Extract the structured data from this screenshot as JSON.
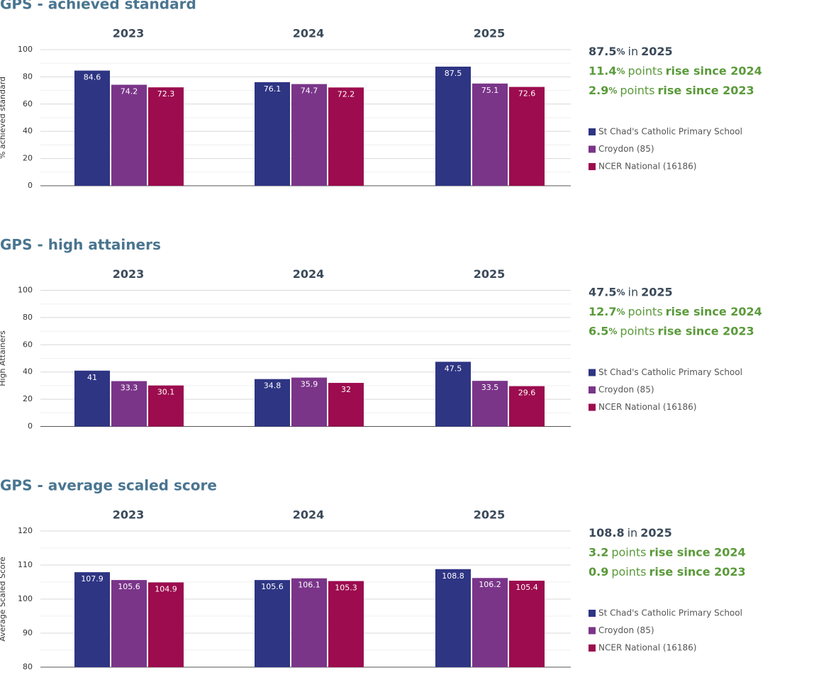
{
  "chart_data": [
    {
      "type": "bar",
      "title": "GPS - achieved standard",
      "y_label": "% achieved standard",
      "categories": [
        "2023",
        "2024",
        "2025"
      ],
      "series": [
        {
          "name": "St Chad's Catholic Primary School",
          "color": "#2e3583",
          "values": [
            84.6,
            76.1,
            87.5
          ]
        },
        {
          "name": "Croydon (85)",
          "color": "#7a3589",
          "values": [
            74.2,
            74.7,
            75.1
          ]
        },
        {
          "name": "NCER National (16186)",
          "color": "#9c0c4e",
          "values": [
            72.3,
            72.2,
            72.6
          ]
        }
      ],
      "ylim": [
        0,
        100
      ],
      "yticks": [
        0,
        20,
        40,
        60,
        80,
        100
      ],
      "minor_yticks": [
        10,
        30,
        50,
        70,
        90
      ],
      "grid": true,
      "summary": [
        {
          "figure": "87.5",
          "unit": "%",
          "words": "in",
          "emphasis": "2025"
        },
        {
          "figure": "11.4",
          "unit": "%",
          "words": "points",
          "emphasis": "rise since 2024"
        },
        {
          "figure": "2.9",
          "unit": "%",
          "words": "points",
          "emphasis": "rise since 2023"
        }
      ]
    },
    {
      "type": "bar",
      "title": "GPS - high attainers",
      "y_label": "High Attainers",
      "categories": [
        "2023",
        "2024",
        "2025"
      ],
      "series": [
        {
          "name": "St Chad's Catholic Primary School",
          "color": "#2e3583",
          "values": [
            41,
            34.8,
            47.5
          ]
        },
        {
          "name": "Croydon (85)",
          "color": "#7a3589",
          "values": [
            33.3,
            35.9,
            33.5
          ]
        },
        {
          "name": "NCER National (16186)",
          "color": "#9c0c4e",
          "values": [
            30.1,
            32,
            29.6
          ]
        }
      ],
      "ylim": [
        0,
        100
      ],
      "yticks": [
        0,
        20,
        40,
        60,
        80,
        100
      ],
      "minor_yticks": [
        10,
        30,
        50,
        70,
        90
      ],
      "grid": true,
      "summary": [
        {
          "figure": "47.5",
          "unit": "%",
          "words": "in",
          "emphasis": "2025"
        },
        {
          "figure": "12.7",
          "unit": "%",
          "words": "points",
          "emphasis": "rise since 2024"
        },
        {
          "figure": "6.5",
          "unit": "%",
          "words": "points",
          "emphasis": "rise since 2023"
        }
      ]
    },
    {
      "type": "bar",
      "title": "GPS - average scaled score",
      "y_label": "Average Scaled Score",
      "categories": [
        "2023",
        "2024",
        "2025"
      ],
      "series": [
        {
          "name": "St Chad's Catholic Primary School",
          "color": "#2e3583",
          "values": [
            107.9,
            105.6,
            108.8
          ]
        },
        {
          "name": "Croydon (85)",
          "color": "#7a3589",
          "values": [
            105.6,
            106.1,
            106.2
          ]
        },
        {
          "name": "NCER National (16186)",
          "color": "#9c0c4e",
          "values": [
            104.9,
            105.3,
            105.4
          ]
        }
      ],
      "ylim": [
        80,
        120
      ],
      "yticks": [
        80,
        90,
        100,
        110,
        120
      ],
      "minor_yticks": [
        85,
        95,
        105,
        115
      ],
      "grid": true,
      "summary": [
        {
          "figure": "108.8",
          "words": "in",
          "emphasis": "2025"
        },
        {
          "figure": "3.2",
          "words": "points",
          "emphasis": "rise since 2024"
        },
        {
          "figure": "0.9",
          "words": "points",
          "emphasis": "rise since 2023"
        }
      ]
    }
  ]
}
